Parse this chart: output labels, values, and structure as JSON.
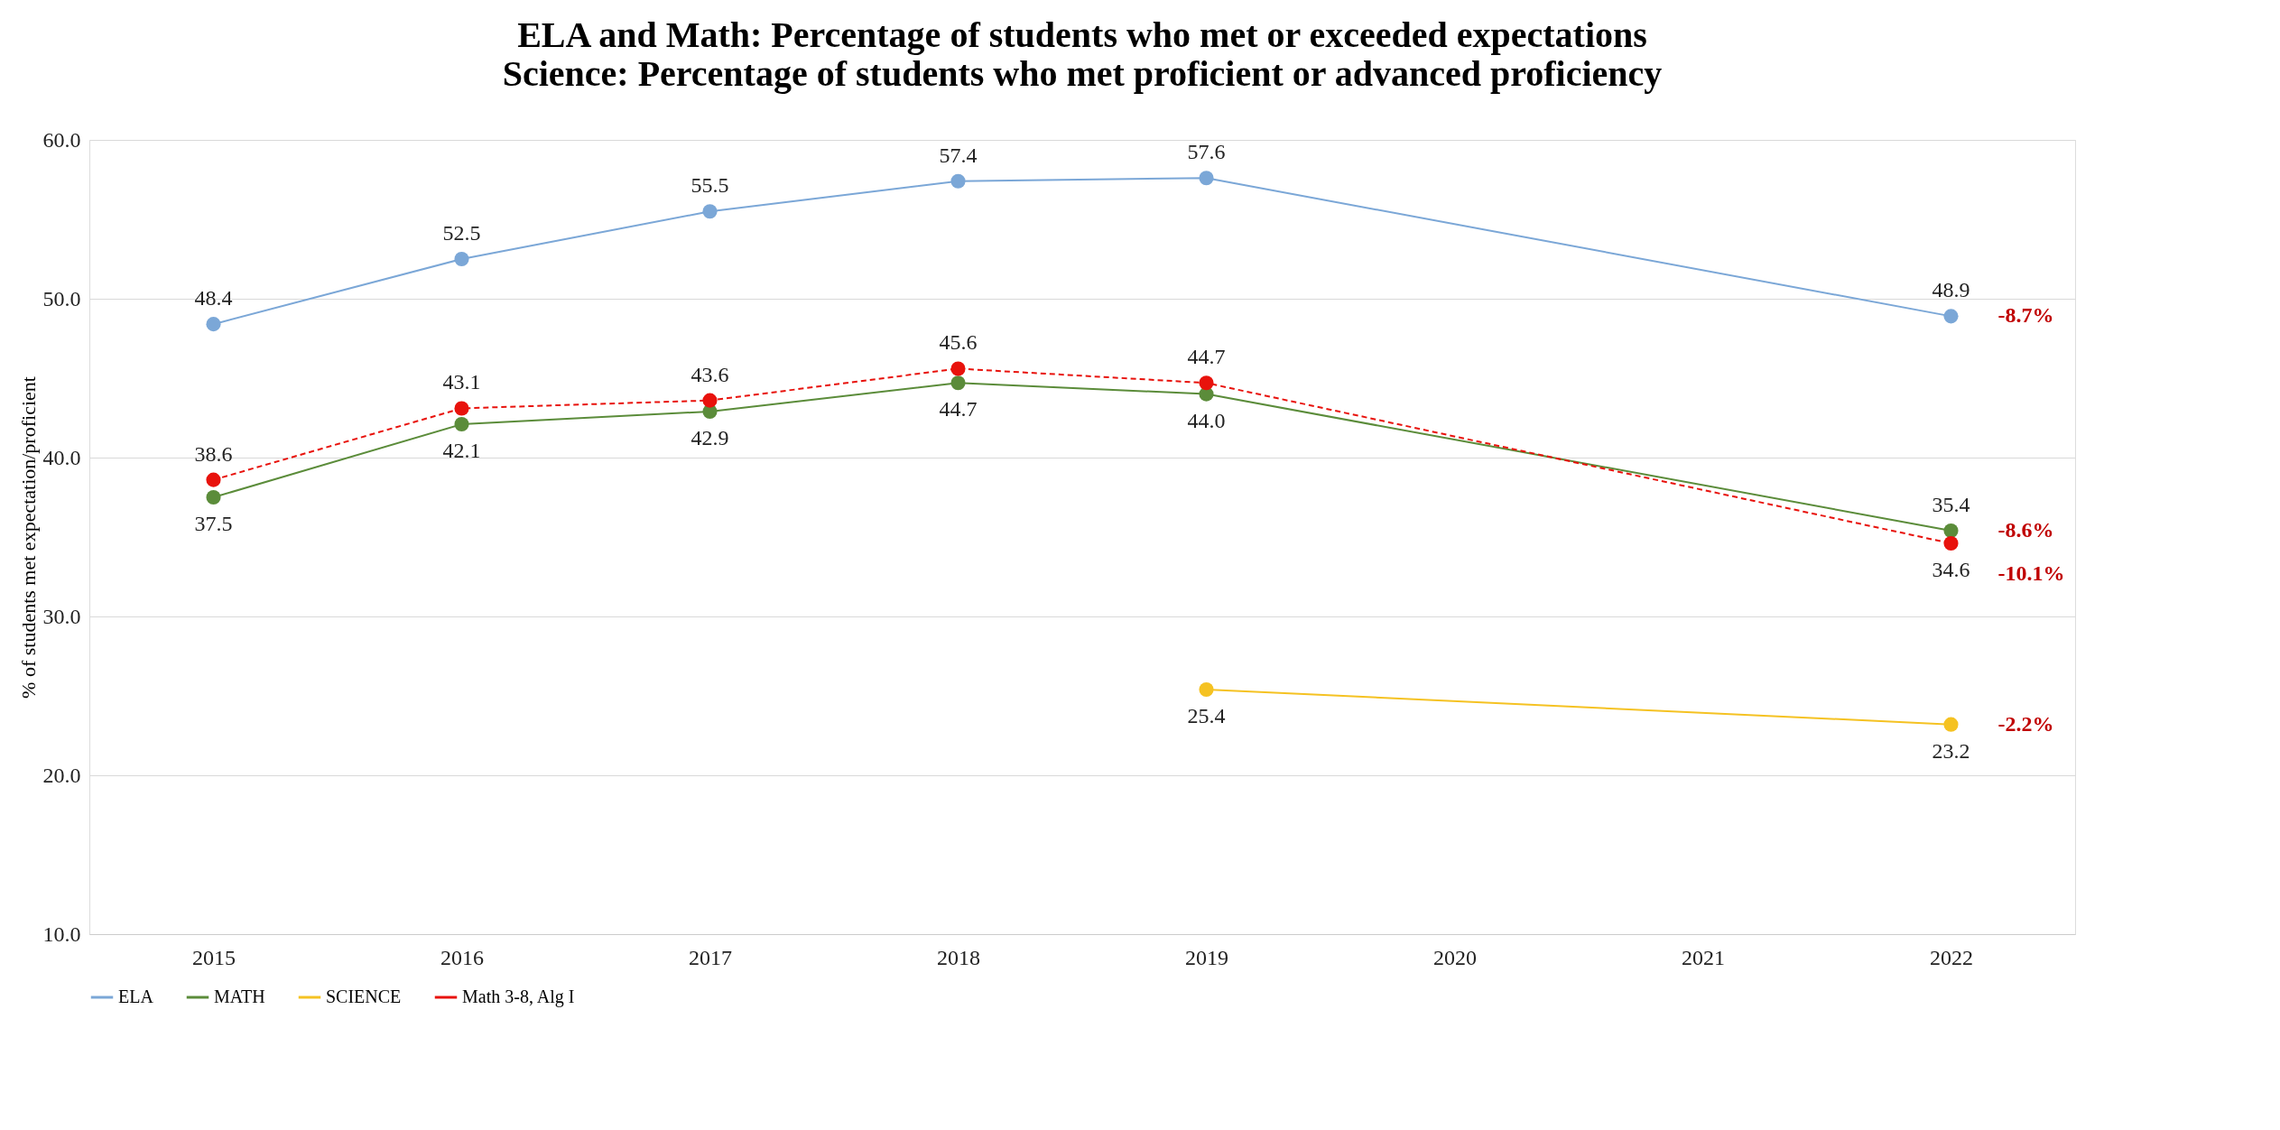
{
  "chart_data": {
    "type": "line",
    "title": "ELA and Math: Percentage of students who met or exceeded expectations",
    "subtitle": "Science: Percentage of students who met proficient or advanced proficiency",
    "ylabel": "% of students met expectation/proficient",
    "categories": [
      "2015",
      "2016",
      "2017",
      "2018",
      "2019",
      "2020",
      "2021",
      "2022"
    ],
    "series": [
      {
        "name": "ELA",
        "color": "#7ba7d7",
        "values": [
          48.4,
          52.5,
          55.5,
          57.4,
          57.6,
          null,
          null,
          48.9
        ],
        "value_labels": [
          "48.4",
          "52.5",
          "55.5",
          "57.4",
          "57.6",
          null,
          null,
          "48.9"
        ]
      },
      {
        "name": "MATH",
        "color": "#5b8c3a",
        "values": [
          37.5,
          42.1,
          42.9,
          44.7,
          44.0,
          null,
          null,
          35.4
        ],
        "value_labels": [
          "37.5",
          "42.1",
          "42.9",
          "44.7",
          "44.0",
          null,
          null,
          "35.4"
        ]
      },
      {
        "name": "SCIENCE",
        "color": "#f5c222",
        "values": [
          null,
          null,
          null,
          null,
          25.4,
          null,
          null,
          23.2
        ],
        "value_labels": [
          null,
          null,
          null,
          null,
          "25.4",
          null,
          null,
          "23.2"
        ]
      },
      {
        "name": "Math 3-8, Alg I",
        "color": "#e8120c",
        "values": [
          38.6,
          43.1,
          43.6,
          45.6,
          44.7,
          null,
          null,
          34.6
        ],
        "line_style": "dashed",
        "value_labels": [
          "38.6",
          "43.1",
          "43.6",
          "45.6",
          "44.7",
          null,
          null,
          "34.6"
        ]
      }
    ],
    "ylim": [
      10,
      60
    ],
    "yticks": [
      {
        "value": 10,
        "label": "10.0"
      },
      {
        "value": 20,
        "label": "20.0"
      },
      {
        "value": 30,
        "label": "30.0"
      },
      {
        "value": 40,
        "label": "40.0"
      },
      {
        "value": 50,
        "label": "50.0"
      },
      {
        "value": 60,
        "label": "60.0"
      }
    ],
    "grid": "y",
    "legend": "bottom",
    "marker": "circle",
    "line_style": "solid",
    "annotations": [
      {
        "text": "-8.7%",
        "x": "2022",
        "y": 48.9
      },
      {
        "text": "-8.6%",
        "x": "2022",
        "y": 35.4
      },
      {
        "text": "-10.1%",
        "x": "2022",
        "y": 34.6
      },
      {
        "text": "-2.2%",
        "x": "2022",
        "y": 23.2
      }
    ]
  }
}
